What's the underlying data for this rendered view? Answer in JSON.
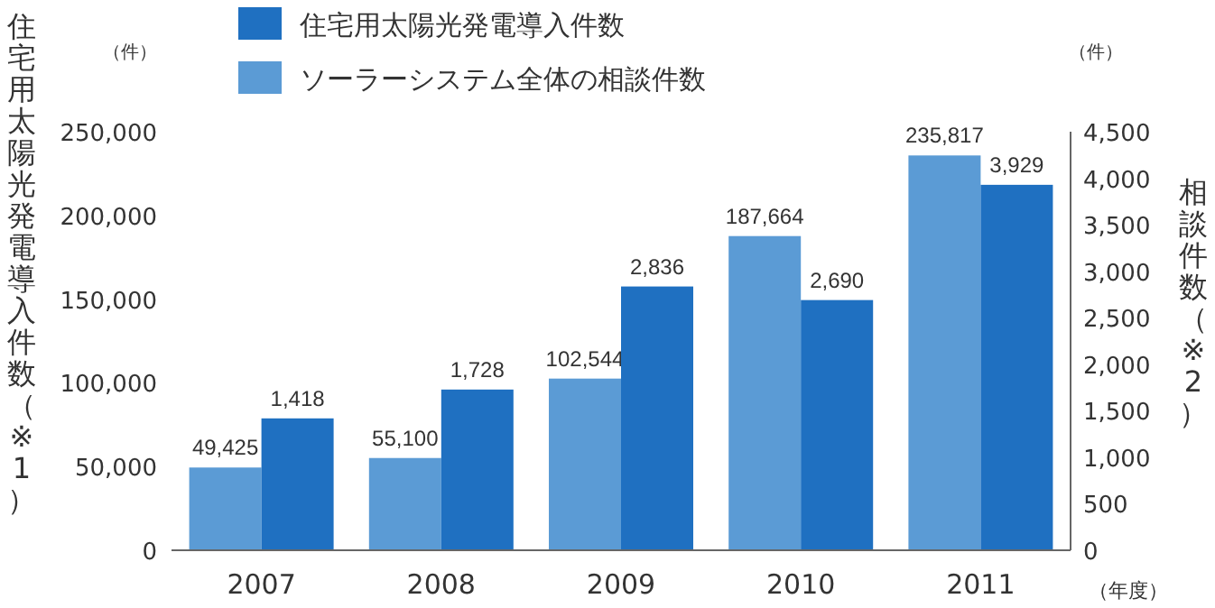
{
  "chart_data": {
    "type": "bar",
    "categories": [
      "2007",
      "2008",
      "2009",
      "2010",
      "2011"
    ],
    "series": [
      {
        "name": "ソーラーシステム全体の相談件数",
        "color": "#5b9bd5",
        "values": [
          49425,
          55100,
          102544,
          187664,
          235817
        ],
        "value_labels": [
          "49,425",
          "55,100",
          "102,544",
          "187,664",
          "235,817"
        ]
      },
      {
        "name": "住宅用太陽光発電導入件数",
        "color": "#1f70c1",
        "axis": "y2",
        "values": [
          1418,
          1728,
          2836,
          2690,
          3929
        ],
        "value_labels": [
          "1,418",
          "1,728",
          "2,836",
          "2,690",
          "3,929"
        ]
      }
    ],
    "ylim": [
      0,
      250000
    ],
    "yticks": [
      0,
      {
        "value": 50000,
        "label": "50,000"
      },
      {
        "value": 100000,
        "label": "100,000"
      },
      {
        "value": 150000,
        "label": "150,000"
      },
      {
        "value": 200000,
        "label": "200,000"
      },
      {
        "value": 250000,
        "label": "250,000"
      }
    ],
    "y2lim": [
      0,
      4500
    ],
    "y2ticks": [
      0,
      500,
      {
        "value": 1000,
        "label": "1,000"
      },
      {
        "value": 1500,
        "label": "1,500"
      },
      {
        "value": 2000,
        "label": "2,000"
      },
      {
        "value": 2500,
        "label": "2,500"
      },
      {
        "value": 3000,
        "label": "3,000"
      },
      {
        "value": 3500,
        "label": "3,500"
      },
      {
        "value": 4000,
        "label": "4,000"
      },
      {
        "value": 4500,
        "label": "4,500"
      }
    ],
    "ylabel": "住宅用太陽光発電導入件数（※1）",
    "y2label": "相談件数（※2）",
    "xlabel": "（年度）",
    "annotations": [
      "（件）",
      "（件）"
    ],
    "legend": "top left"
  }
}
